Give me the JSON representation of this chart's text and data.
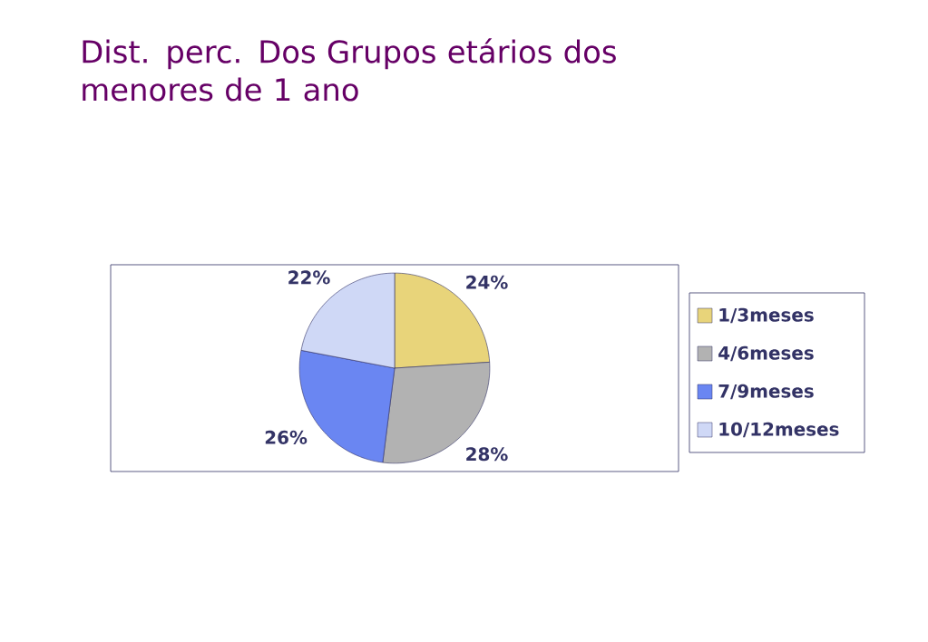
{
  "chart_data": {
    "type": "pie",
    "title": "Dist. perc. Dos Grupos etários dos menores de 1 ano",
    "categories": [
      "1/3meses",
      "4/6meses",
      "7/9meses",
      "10/12meses"
    ],
    "values": [
      24,
      28,
      26,
      22
    ],
    "value_labels": [
      "24%",
      "28%",
      "26%",
      "22%"
    ],
    "colors": [
      "#e8d47a",
      "#b2b2b2",
      "#6a86f2",
      "#cfd8f6"
    ],
    "legend": "right"
  }
}
